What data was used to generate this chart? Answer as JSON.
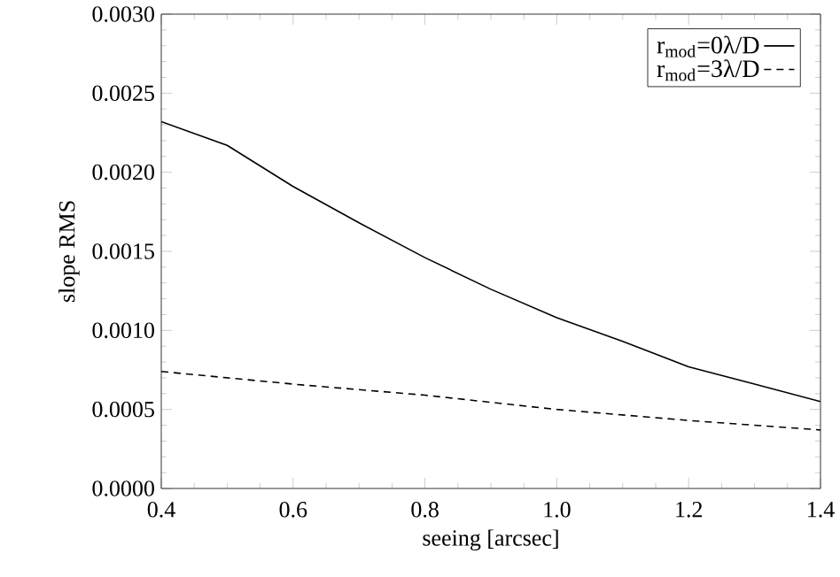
{
  "chart_data": {
    "type": "line",
    "xlabel": "seeing [arcsec]",
    "ylabel": "slope RMS",
    "xlim": [
      0.4,
      1.4
    ],
    "xticks": [
      {
        "value": 0.4,
        "label": "0.4"
      },
      {
        "value": 0.6,
        "label": "0.6"
      },
      {
        "value": 0.8,
        "label": "0.8"
      },
      {
        "value": 1.0,
        "label": "1.0"
      },
      {
        "value": 1.2,
        "label": "1.2"
      },
      {
        "value": 1.4,
        "label": "1.4"
      }
    ],
    "ylim": [
      0,
      0.003
    ],
    "yticks": [
      {
        "value": 0,
        "label": "0.0000"
      },
      {
        "value": 0.0005,
        "label": "0.0005"
      },
      {
        "value": 0.001,
        "label": "0.0010"
      },
      {
        "value": 0.0015,
        "label": "0.0015"
      },
      {
        "value": 0.002,
        "label": "0.0020"
      },
      {
        "value": 0.0025,
        "label": "0.0025"
      },
      {
        "value": 0.003,
        "label": "0.0030"
      }
    ],
    "x": [
      0.4,
      0.5,
      0.6,
      0.7,
      0.8,
      0.9,
      1.0,
      1.1,
      1.2,
      1.3,
      1.4
    ],
    "legend": "top right",
    "grid": false,
    "marker": "none",
    "series": [
      {
        "name": "r$_{mod}$=0λ/D",
        "color": "#000000",
        "line_style": "solid",
        "values": [
          0.00232,
          0.00217,
          0.00191,
          0.00168,
          0.00146,
          0.00126,
          0.00108,
          0.00093,
          0.00077,
          0.00066,
          0.00055
        ]
      },
      {
        "name": "r$_{mod}$=3λ/D",
        "color": "#000000",
        "line_style": "dashed",
        "x": [
          0.4,
          0.6,
          0.8,
          1.0,
          1.2,
          1.4
        ],
        "values": [
          0.00074,
          0.00066,
          0.00059,
          0.0005,
          0.00043,
          0.00037
        ]
      }
    ]
  }
}
